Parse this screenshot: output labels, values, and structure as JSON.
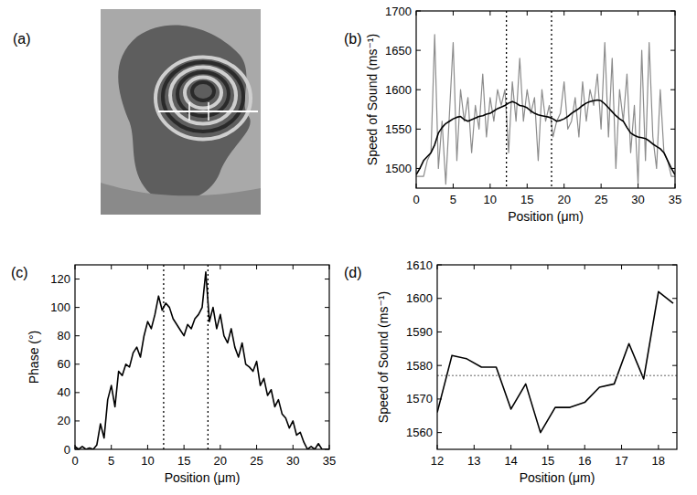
{
  "chart_data": [
    {
      "type": "image",
      "panel": "(a)"
    },
    {
      "type": "line",
      "panel": "(b)",
      "x_label": "Position (μm)",
      "y_label": "Speed of Sound (ms⁻¹)",
      "x": [
        0,
        0.5,
        1,
        1.5,
        2,
        2.5,
        3,
        3.5,
        4,
        4.5,
        5,
        5.5,
        6,
        6.5,
        7,
        7.5,
        8,
        8.5,
        9,
        9.5,
        10,
        10.5,
        11,
        11.5,
        12,
        12.5,
        13,
        13.5,
        14,
        14.5,
        15,
        15.5,
        16,
        16.5,
        17,
        17.5,
        18,
        18.5,
        19,
        19.5,
        20,
        20.5,
        21,
        21.5,
        22,
        22.5,
        23,
        23.5,
        24,
        24.5,
        25,
        25.5,
        26,
        26.5,
        27,
        27.5,
        28,
        28.5,
        29,
        29.5,
        30,
        30.5,
        31,
        31.5,
        32,
        32.5,
        33,
        33.5,
        34,
        34.5,
        35
      ],
      "series": [
        {
          "color": "#8c8c8c",
          "values": [
            1490,
            1490,
            1490,
            1510,
            1520,
            1670,
            1500,
            1560,
            1480,
            1570,
            1660,
            1510,
            1600,
            1560,
            1590,
            1520,
            1580,
            1550,
            1620,
            1540,
            1590,
            1560,
            1600,
            1580,
            1600,
            1520,
            1610,
            1560,
            1640,
            1560,
            1600,
            1570,
            1590,
            1510,
            1600,
            1560,
            1580,
            1540,
            1560,
            1570,
            1610,
            1550,
            1560,
            1590,
            1540,
            1610,
            1560,
            1600,
            1580,
            1620,
            1550,
            1660,
            1540,
            1640,
            1500,
            1600,
            1560,
            1620,
            1520,
            1580,
            1480,
            1650,
            1510,
            1660,
            1540,
            1500,
            1600,
            1520,
            1510,
            1490,
            1490
          ]
        },
        {
          "color": "#000000",
          "values": [
            1492,
            1500,
            1510,
            1515,
            1520,
            1530,
            1545,
            1552,
            1557,
            1560,
            1563,
            1565,
            1566,
            1562,
            1560,
            1562,
            1564,
            1566,
            1567,
            1569,
            1570,
            1573,
            1576,
            1578,
            1580,
            1583,
            1585,
            1583,
            1580,
            1579,
            1577,
            1573,
            1570,
            1568,
            1567,
            1566,
            1565,
            1563,
            1560,
            1561,
            1563,
            1566,
            1570,
            1573,
            1576,
            1580,
            1583,
            1585,
            1586,
            1587,
            1586,
            1582,
            1577,
            1572,
            1567,
            1563,
            1560,
            1552,
            1545,
            1542,
            1540,
            1539,
            1538,
            1535,
            1531,
            1528,
            1525,
            1520,
            1510,
            1500,
            1492
          ]
        }
      ],
      "vlines": [
        12.2,
        18.3
      ],
      "xlim": [
        0,
        35
      ],
      "xticks": [
        0,
        5,
        10,
        15,
        20,
        25,
        30,
        35
      ],
      "ylim": [
        1475,
        1700
      ],
      "yticks": [
        1500,
        1550,
        1600,
        1650,
        1700
      ]
    },
    {
      "type": "line",
      "panel": "(c)",
      "x_label": "Position (μm)",
      "y_label": "Phase (°)",
      "x": [
        0,
        0.5,
        1,
        1.5,
        2,
        2.5,
        3,
        3.5,
        4,
        4.5,
        5,
        5.5,
        6,
        6.5,
        7,
        7.5,
        8,
        8.5,
        9,
        9.5,
        10,
        10.5,
        11,
        11.5,
        12,
        12.5,
        13,
        13.5,
        14,
        14.5,
        15,
        15.5,
        16,
        16.5,
        17,
        17.5,
        18,
        18.5,
        19,
        19.5,
        20,
        20.5,
        21,
        21.5,
        22,
        22.5,
        23,
        23.5,
        24,
        24.5,
        25,
        25.5,
        26,
        26.5,
        27,
        27.5,
        28,
        28.5,
        29,
        29.5,
        30,
        30.5,
        31,
        31.5,
        32,
        32.5,
        33,
        33.5,
        34,
        34.5,
        35
      ],
      "series": [
        {
          "color": "#000000",
          "values": [
            2,
            0,
            2,
            0,
            1,
            0,
            3,
            18,
            8,
            35,
            45,
            30,
            55,
            52,
            60,
            58,
            68,
            72,
            65,
            80,
            90,
            85,
            95,
            108,
            98,
            103,
            100,
            92,
            88,
            84,
            80,
            88,
            85,
            92,
            95,
            100,
            125,
            90,
            100,
            85,
            95,
            80,
            75,
            85,
            72,
            65,
            75,
            60,
            58,
            55,
            62,
            45,
            50,
            38,
            42,
            30,
            35,
            25,
            22,
            15,
            20,
            10,
            12,
            5,
            0,
            2,
            0,
            4,
            0,
            0,
            0
          ]
        }
      ],
      "vlines": [
        12.2,
        18.3
      ],
      "xlim": [
        0,
        35
      ],
      "xticks": [
        0,
        5,
        10,
        15,
        20,
        25,
        30,
        35
      ],
      "ylim": [
        0,
        130
      ],
      "yticks": [
        0,
        20,
        40,
        60,
        80,
        100,
        120
      ]
    },
    {
      "type": "line",
      "panel": "(d)",
      "x_label": "Position (μm)",
      "y_label": "Speed of Sound (ms⁻¹)",
      "x": [
        12.0,
        12.4,
        12.8,
        13.2,
        13.6,
        14.0,
        14.4,
        14.8,
        15.2,
        15.6,
        16.0,
        16.4,
        16.8,
        17.2,
        17.6,
        18.0,
        18.4
      ],
      "series": [
        {
          "color": "#000000",
          "values": [
            1566,
            1583,
            1582,
            1579.5,
            1579.5,
            1567,
            1574.5,
            1560,
            1567.5,
            1567.5,
            1569,
            1573.5,
            1574.5,
            1586.5,
            1576,
            1602,
            1598.5
          ]
        }
      ],
      "hline": 1577,
      "xlim": [
        12,
        18.5
      ],
      "xticks": [
        12,
        13,
        14,
        15,
        16,
        17,
        18
      ],
      "ylim": [
        1555,
        1610
      ],
      "yticks": [
        1560,
        1570,
        1580,
        1590,
        1600,
        1610
      ]
    }
  ]
}
